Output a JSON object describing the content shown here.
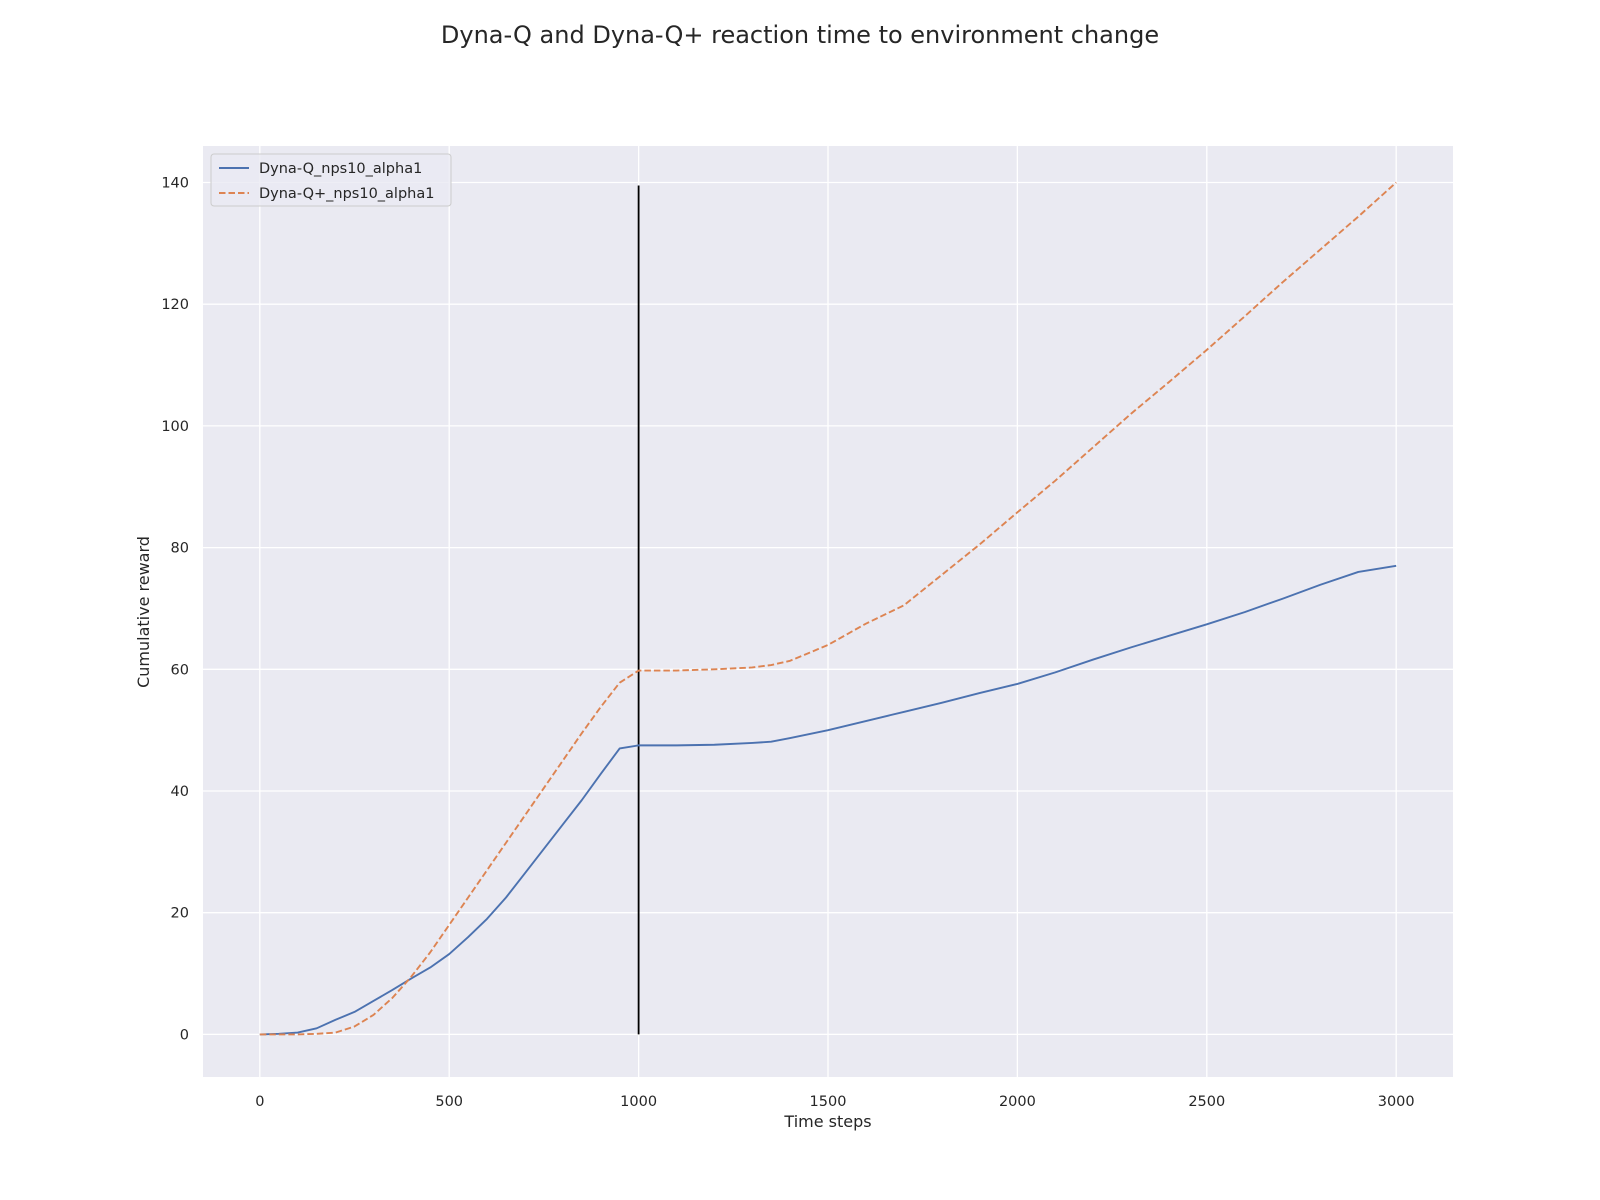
{
  "chart_data": {
    "type": "line",
    "title": "Dyna-Q and Dyna-Q+ reaction time to environment change",
    "xlabel": "Time steps",
    "ylabel": "Cumulative reward",
    "xlim": [
      -150,
      3150
    ],
    "ylim": [
      -7,
      146
    ],
    "xticks": [
      0,
      500,
      1000,
      1500,
      2000,
      2500,
      3000
    ],
    "yticks": [
      0,
      20,
      40,
      60,
      80,
      100,
      120,
      140
    ],
    "grid": true,
    "legend_position": "top-left",
    "background": "#eaeaf2",
    "series": [
      {
        "name": "Dyna-Q_nps10_alpha1",
        "color": "#4c72b0",
        "style": "solid",
        "x": [
          0,
          50,
          100,
          150,
          200,
          250,
          300,
          350,
          400,
          450,
          500,
          550,
          600,
          650,
          700,
          750,
          800,
          850,
          900,
          950,
          1000,
          1100,
          1200,
          1300,
          1350,
          1400,
          1500,
          1600,
          1700,
          1800,
          1900,
          2000,
          2100,
          2200,
          2300,
          2400,
          2500,
          2600,
          2700,
          2800,
          2900,
          3000
        ],
        "y": [
          0,
          0.1,
          0.3,
          1.0,
          2.4,
          3.7,
          5.5,
          7.3,
          9.2,
          11.0,
          13.2,
          16.0,
          19.0,
          22.5,
          26.5,
          30.5,
          34.5,
          38.5,
          42.8,
          47.0,
          47.5,
          47.5,
          47.6,
          47.9,
          48.1,
          48.7,
          50.0,
          51.5,
          53.0,
          54.5,
          56.1,
          57.6,
          59.5,
          61.6,
          63.6,
          65.5,
          67.4,
          69.4,
          71.6,
          73.9,
          76.0,
          77.0
        ]
      },
      {
        "name": "Dyna-Q+_nps10_alpha1",
        "color": "#dd8452",
        "style": "dashed",
        "x": [
          0,
          50,
          100,
          150,
          200,
          250,
          300,
          350,
          400,
          450,
          500,
          550,
          600,
          650,
          700,
          750,
          800,
          850,
          900,
          950,
          1000,
          1100,
          1200,
          1300,
          1350,
          1400,
          1500,
          1600,
          1700,
          1800,
          1900,
          2000,
          2100,
          2200,
          2300,
          2400,
          2500,
          2600,
          2700,
          2800,
          2900,
          3000
        ],
        "y": [
          0,
          0,
          0,
          0.1,
          0.3,
          1.3,
          3.2,
          6.0,
          9.5,
          13.5,
          18.0,
          22.5,
          27.0,
          31.5,
          36.0,
          40.5,
          45.0,
          49.5,
          53.8,
          57.8,
          59.8,
          59.8,
          60.0,
          60.3,
          60.7,
          61.4,
          64.0,
          67.5,
          70.5,
          75.5,
          80.5,
          85.8,
          91.0,
          96.5,
          102.0,
          107.2,
          112.5,
          118.0,
          123.6,
          129.0,
          134.4,
          140.0
        ]
      }
    ],
    "vlines": [
      {
        "x": 1000,
        "ymin": 0,
        "ymax": 139.5,
        "color": "#000000"
      }
    ]
  }
}
